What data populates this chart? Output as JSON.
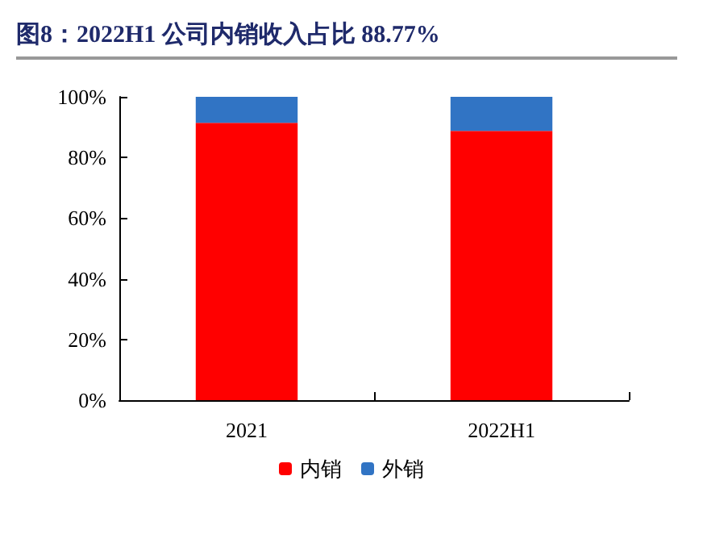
{
  "chart_data": {
    "type": "bar",
    "title": "图8：2022H1 公司内销收入占比 88.77%",
    "categories": [
      "2021",
      "2022H1"
    ],
    "stacked": true,
    "series": [
      {
        "name": "内销",
        "color": "#ff0000",
        "values": [
          91.4,
          88.77
        ]
      },
      {
        "name": "外销",
        "color": "#3174c4",
        "values": [
          8.6,
          11.23
        ]
      }
    ],
    "ylim": [
      0,
      100
    ],
    "yticks": [
      {
        "value": 0,
        "label": "0%"
      },
      {
        "value": 20,
        "label": "20%"
      },
      {
        "value": 40,
        "label": "40%"
      },
      {
        "value": 60,
        "label": "60%"
      },
      {
        "value": 80,
        "label": "80%"
      },
      {
        "value": 100,
        "label": "100%"
      }
    ],
    "grid": false,
    "legend": "bottom"
  }
}
